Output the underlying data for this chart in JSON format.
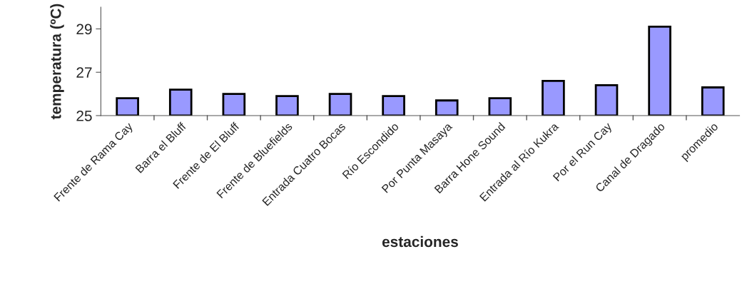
{
  "chart_data": {
    "type": "bar",
    "xlabel": "estaciones",
    "ylabel": "temperatura (ºC)",
    "categories": [
      "Frente de Rama Cay",
      "Barra el Bluff",
      "Frente de El Bluff",
      "Frente de Bluefields",
      "Entrada Cuatro Bocas",
      "Río Escondido",
      "Por Punta Masaya",
      "Barra Hone Sound",
      "Entrada al Río Kukra",
      "Por el Run Cay",
      "Canal de Dragado",
      "promedio"
    ],
    "values": [
      25.8,
      26.2,
      26.0,
      25.9,
      26.0,
      25.9,
      25.7,
      25.8,
      26.6,
      26.4,
      29.1,
      26.3
    ],
    "color": "#9999ff",
    "ylim": [
      25,
      30
    ],
    "yticks": [
      25,
      27,
      29
    ],
    "grid": false,
    "legend": false
  }
}
